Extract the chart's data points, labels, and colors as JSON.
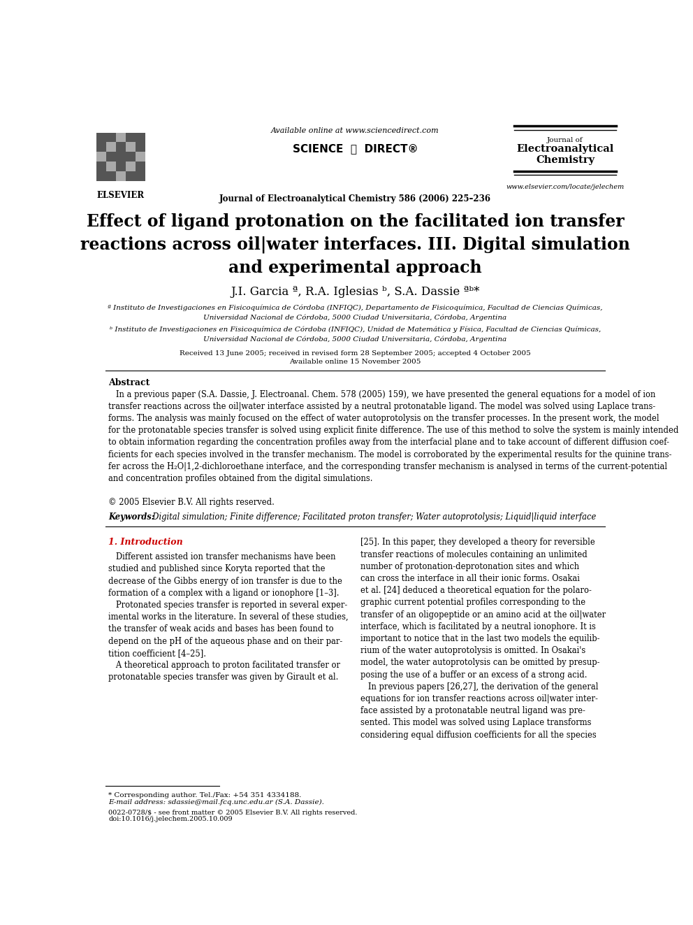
{
  "bg_color": "#ffffff",
  "text_color": "#000000",
  "header": {
    "available_online": "Available online at www.sciencedirect.com",
    "journal_line": "Journal of Electroanalytical Chemistry 586 (2006) 225–236",
    "journal_name_line1": "Journal of",
    "journal_name_line2": "Electroanalytical",
    "journal_name_line3": "Chemistry",
    "website": "www.elsevier.com/locate/jelechem",
    "elsevier_label": "ELSEVIER",
    "science_direct": "SCIENCE  ⓓ  DIRECT®"
  },
  "title": "Effect of ligand protonation on the facilitated ion transfer\nreactions across oil|water interfaces. III. Digital simulation\nand experimental approach",
  "authors": "J.I. Garcia ª, R.A. Iglesias ᵇ, S.A. Dassie ªᵇ*",
  "affiliation_a": "ª Instituto de Investigaciones en Fisicoquímica de Córdoba (INFIQC), Departamento de Fisicoquímica, Facultad de Ciencias Químicas,\nUniversidad Nacional de Córdoba, 5000 Ciudad Universitaria, Córdoba, Argentina",
  "affiliation_b": "ᵇ Instituto de Investigaciones en Fisicoquímica de Córdoba (INFIQC), Unidad de Matemática y Física, Facultad de Ciencias Químicas,\nUniversidad Nacional de Córdoba, 5000 Ciudad Universitaria, Córdoba, Argentina",
  "received": "Received 13 June 2005; received in revised form 28 September 2005; accepted 4 October 2005",
  "available_online2": "Available online 15 November 2005",
  "abstract_title": "Abstract",
  "abstract_text": "   In a previous paper (S.A. Dassie, J. Electroanal. Chem. 578 (2005) 159), we have presented the general equations for a model of ion\ntransfer reactions across the oil|water interface assisted by a neutral protonatable ligand. The model was solved using Laplace trans-\nforms. The analysis was mainly focused on the effect of water autoprotolysis on the transfer processes. In the present work, the model\nfor the protonatable species transfer is solved using explicit finite difference. The use of this method to solve the system is mainly intended\nto obtain information regarding the concentration profiles away from the interfacial plane and to take account of different diffusion coef-\nficients for each species involved in the transfer mechanism. The model is corroborated by the experimental results for the quinine trans-\nfer across the H₂O|1,2-dichloroethane interface, and the corresponding transfer mechanism is analysed in terms of the current-potential\nand concentration profiles obtained from the digital simulations.",
  "copyright": "© 2005 Elsevier B.V. All rights reserved.",
  "keywords_label": "Keywords:",
  "keywords_text": "  Digital simulation; Finite difference; Facilitated proton transfer; Water autoprotolysis; Liquid|liquid interface",
  "section1_title": "1. Introduction",
  "intro_text_left": "   Different assisted ion transfer mechanisms have been\nstudied and published since Koryta reported that the\ndecrease of the Gibbs energy of ion transfer is due to the\nformation of a complex with a ligand or ionophore [1–3].\n   Protonated species transfer is reported in several exper-\nimental works in the literature. In several of these studies,\nthe transfer of weak acids and bases has been found to\ndepend on the pH of the aqueous phase and on their par-\ntition coefficient [4–25].\n   A theoretical approach to proton facilitated transfer or\nprotonatable species transfer was given by Girault et al.",
  "intro_text_right": "[25]. In this paper, they developed a theory for reversible\ntransfer reactions of molecules containing an unlimited\nnumber of protonation-deprotonation sites and which\ncan cross the interface in all their ionic forms. Osakai\net al. [24] deduced a theoretical equation for the polaro-\ngraphic current potential profiles corresponding to the\ntransfer of an oligopeptide or an amino acid at the oil|water\ninterface, which is facilitated by a neutral ionophore. It is\nimportant to notice that in the last two models the equilib-\nrium of the water autoprotolysis is omitted. In Osakai's\nmodel, the water autoprotolysis can be omitted by presup-\nposing the use of a buffer or an excess of a strong acid.\n   In previous papers [26,27], the derivation of the general\nequations for ion transfer reactions across oil|water inter-\nface assisted by a protonatable neutral ligand was pre-\nsented. This model was solved using Laplace transforms\nconsidering equal diffusion coefficients for all the species",
  "footnote_star": "* Corresponding author. Tel./Fax: +54 351 4334188.",
  "footnote_email": "E-mail address: sdassie@mail.fcq.unc.edu.ar (S.A. Dassie).",
  "issn": "0022-0728/$ - see front matter © 2005 Elsevier B.V. All rights reserved.",
  "doi": "doi:10.1016/j.jelechem.2005.10.009"
}
